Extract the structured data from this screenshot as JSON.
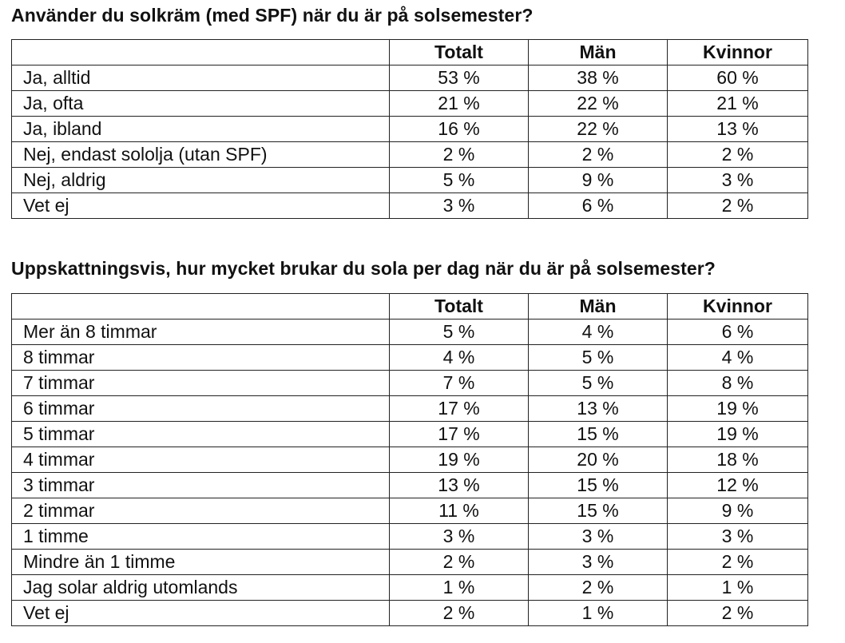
{
  "table1": {
    "question": "Använder du solkräm (med SPF) när du är på solsemester?",
    "headers": [
      "",
      "Totalt",
      "Män",
      "Kvinnor"
    ],
    "rows": [
      [
        "Ja, alltid",
        "53 %",
        "38 %",
        "60 %"
      ],
      [
        "Ja, ofta",
        "21 %",
        "22 %",
        "21 %"
      ],
      [
        "Ja, ibland",
        "16 %",
        "22 %",
        "13 %"
      ],
      [
        "Nej, endast sololja (utan SPF)",
        "2 %",
        "2 %",
        "2 %"
      ],
      [
        "Nej, aldrig",
        "5 %",
        "9 %",
        "3 %"
      ],
      [
        "Vet ej",
        "3 %",
        "6 %",
        "2 %"
      ]
    ]
  },
  "table2": {
    "question": "Uppskattningsvis, hur mycket brukar du sola per dag när du är på solsemester?",
    "headers": [
      "",
      "Totalt",
      "Män",
      "Kvinnor"
    ],
    "rows": [
      [
        "Mer än 8 timmar",
        "5 %",
        "4 %",
        "6 %"
      ],
      [
        "8 timmar",
        "4 %",
        "5 %",
        "4 %"
      ],
      [
        "7 timmar",
        "7 %",
        "5 %",
        "8 %"
      ],
      [
        "6 timmar",
        "17 %",
        "13 %",
        "19 %"
      ],
      [
        "5 timmar",
        "17 %",
        "15 %",
        "19 %"
      ],
      [
        "4 timmar",
        "19 %",
        "20 %",
        "18 %"
      ],
      [
        "3 timmar",
        "13 %",
        "15 %",
        "12 %"
      ],
      [
        "2 timmar",
        "11 %",
        "15 %",
        "9 %"
      ],
      [
        "1 timme",
        "3 %",
        "3 %",
        "3 %"
      ],
      [
        "Mindre än 1 timme",
        "2 %",
        "3 %",
        "2 %"
      ],
      [
        "Jag solar aldrig utomlands",
        "1 %",
        "2 %",
        "1 %"
      ],
      [
        "Vet ej",
        "2 %",
        "1 %",
        "2 %"
      ]
    ]
  }
}
